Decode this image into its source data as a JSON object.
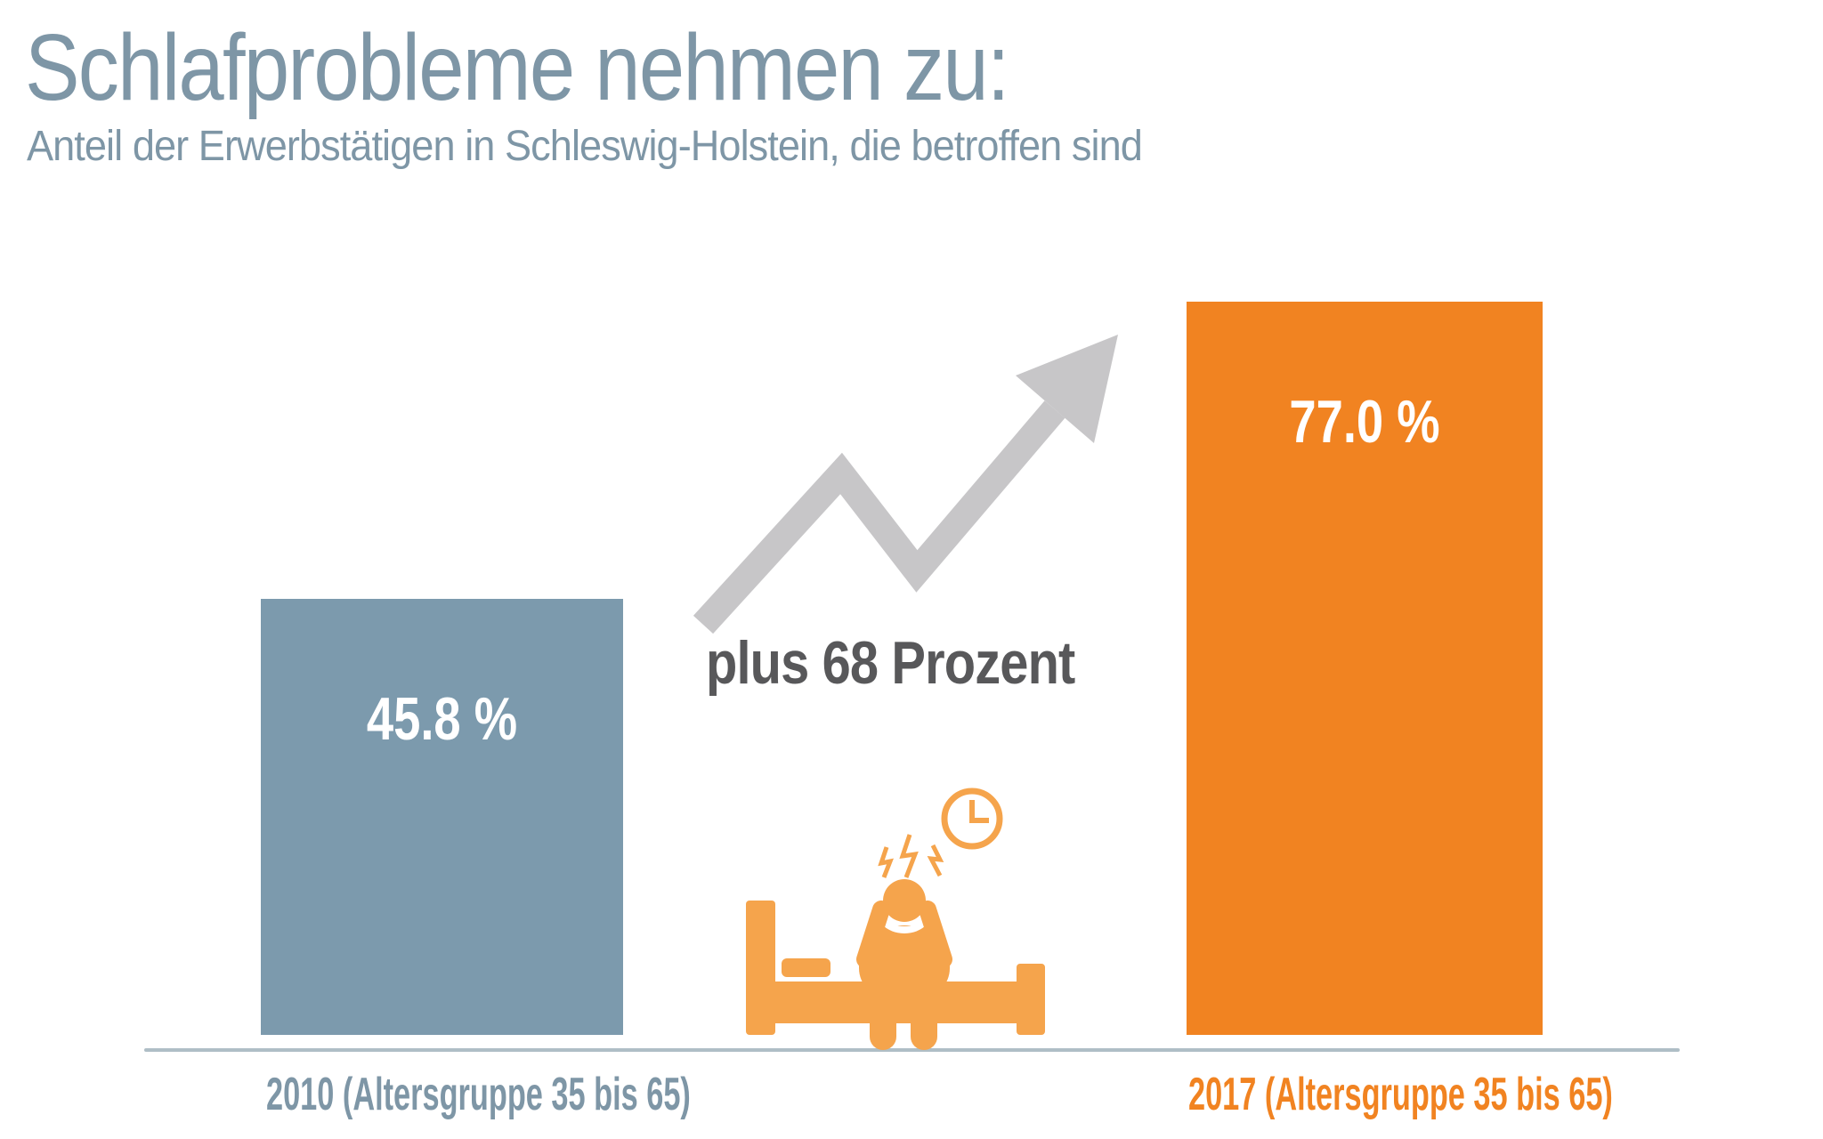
{
  "title": "Schlafprobleme nehmen zu:",
  "subtitle": "Anteil der Erwerbstätigen in Schleswig-Holstein, die betroffen sind",
  "annotation": "plus 68 Prozent",
  "colors": {
    "slate_text": "#7E96A6",
    "slate_bar": "#7C9AAD",
    "orange": "#F18321",
    "orange_light": "#F5A44C",
    "arrow_gray": "#C7C6C8",
    "dark_text": "#58585A",
    "axis_line": "#AFBEC6",
    "value_label": "#FFFFFF"
  },
  "icons": [
    "trend-arrow-icon",
    "bed-icon",
    "person-holding-head-icon",
    "lightning-bolts-icon",
    "clock-icon"
  ],
  "chart_data": {
    "type": "bar",
    "title": "Schlafprobleme nehmen zu:",
    "subtitle": "Anteil der Erwerbstätigen in Schleswig-Holstein, die betroffen sind",
    "categories": [
      "2010 (Altersgruppe 35 bis 65)",
      "2017 (Altersgruppe 35 bis 65)"
    ],
    "values": [
      45.8,
      77.0
    ],
    "value_labels": [
      "45.8 %",
      "77.0 %"
    ],
    "unit": "%",
    "annotation": "plus 68 Prozent",
    "ylim": [
      0,
      100
    ],
    "grid": false,
    "legend": false,
    "baseline_axis_only": true
  }
}
